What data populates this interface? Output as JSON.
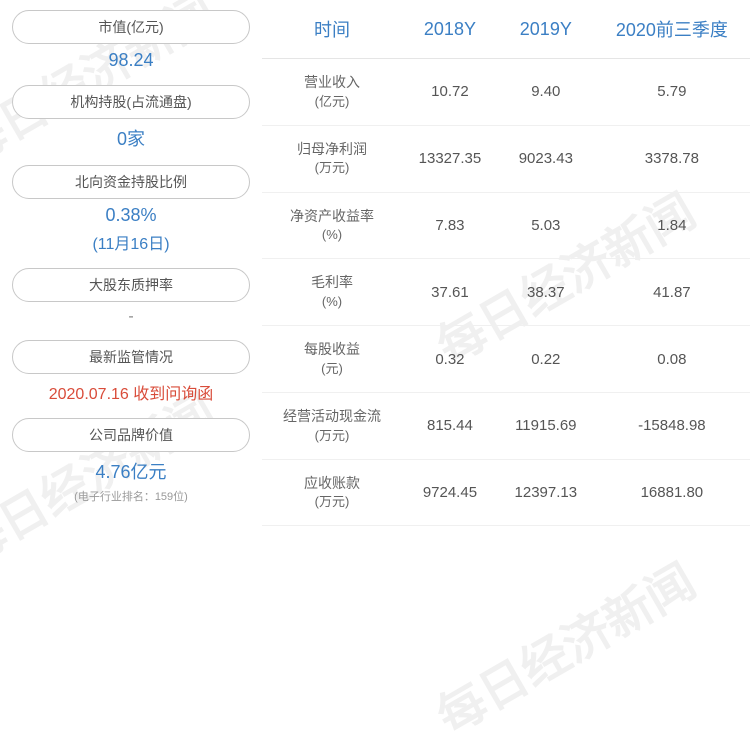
{
  "watermark_text": "每日经济新闻",
  "left_cards": [
    {
      "label": "市值(亿元)",
      "value": "98.24",
      "value_color": "#3b7fc4"
    },
    {
      "label": "机构持股(占流通盘)",
      "value": "0家",
      "value_color": "#3b7fc4"
    },
    {
      "label": "北向资金持股比例",
      "value": "0.38%",
      "sub": "(11月16日)",
      "value_color": "#3b7fc4"
    },
    {
      "label": "大股东质押率",
      "value": "-",
      "value_color": "#888888"
    },
    {
      "label": "最新监管情况",
      "value": "2020.07.16 收到问询函",
      "value_color": "#d94c3a"
    },
    {
      "label": "公司品牌价值",
      "value": "4.76亿元",
      "note": "(电子行业排名：159位)",
      "value_color": "#3b7fc4"
    }
  ],
  "table": {
    "columns": [
      "时间",
      "2018Y",
      "2019Y",
      "2020前三季度"
    ],
    "rows": [
      {
        "label": "营业收入",
        "unit": "(亿元)",
        "cells": [
          "10.72",
          "9.40",
          "5.79"
        ]
      },
      {
        "label": "归母净利润",
        "unit": "(万元)",
        "cells": [
          "13327.35",
          "9023.43",
          "3378.78"
        ]
      },
      {
        "label": "净资产收益率",
        "unit": "(%)",
        "cells": [
          "7.83",
          "5.03",
          "1.84"
        ]
      },
      {
        "label": "毛利率",
        "unit": "(%)",
        "cells": [
          "37.61",
          "38.37",
          "41.87"
        ]
      },
      {
        "label": "每股收益",
        "unit": "(元)",
        "cells": [
          "0.32",
          "0.22",
          "0.08"
        ]
      },
      {
        "label": "经营活动现金流",
        "unit": "(万元)",
        "cells": [
          "815.44",
          "11915.69",
          "-15848.98"
        ]
      },
      {
        "label": "应收账款",
        "unit": "(万元)",
        "cells": [
          "9724.45",
          "12397.13",
          "16881.80"
        ]
      }
    ]
  },
  "colors": {
    "header_text": "#3b7fc4",
    "border": "#c8c8c8",
    "cell_text": "#555555",
    "red": "#d94c3a"
  }
}
